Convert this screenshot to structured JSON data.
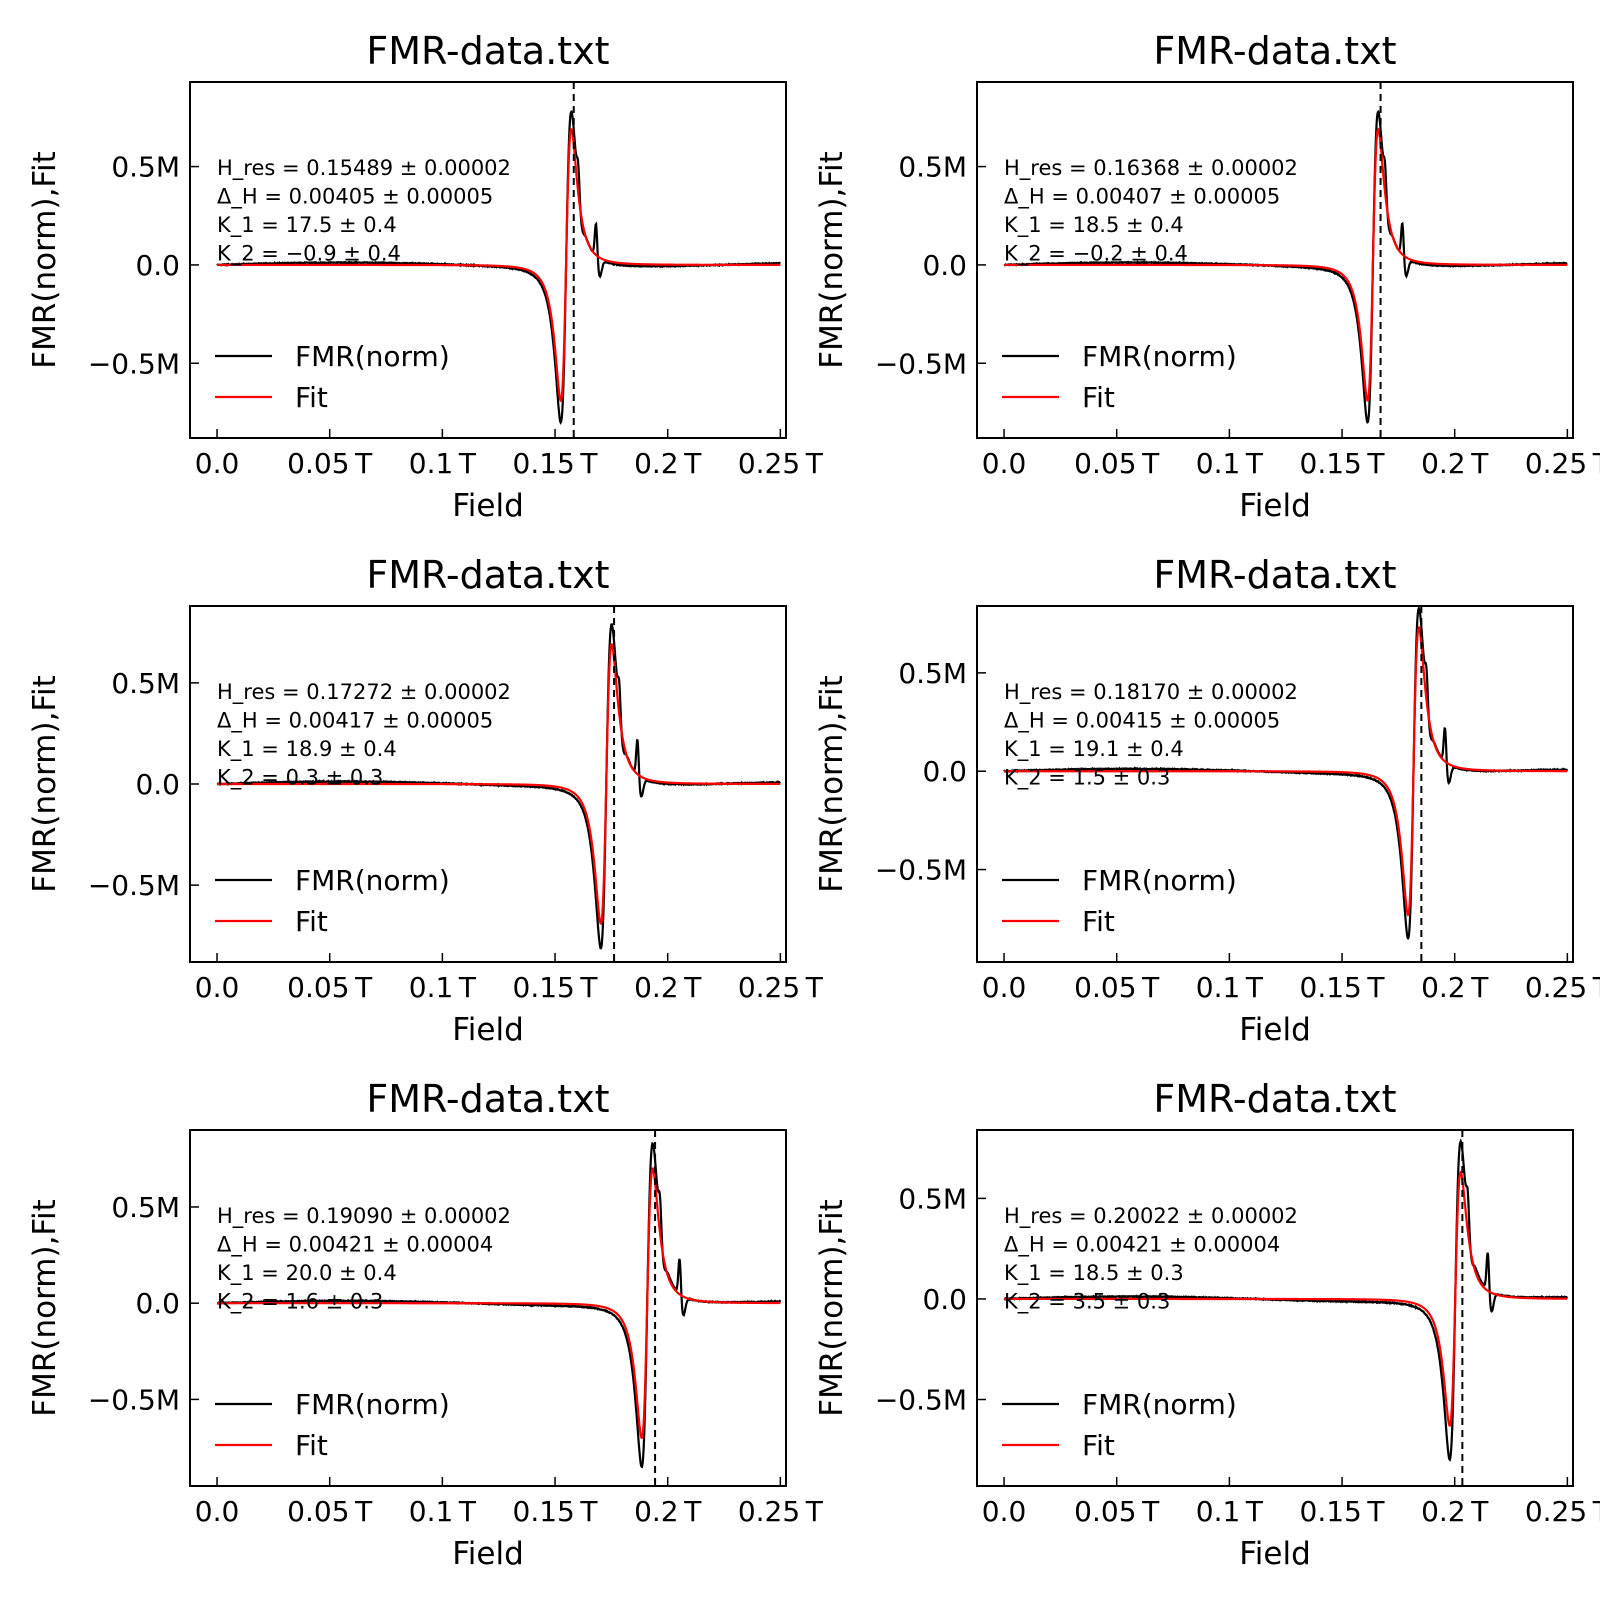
{
  "chart_data": [
    {
      "type": "line",
      "title": "FMR-data.txt",
      "xlabel": "Field",
      "ylabel": "FMR(norm),Fit",
      "xlim": [
        -0.012,
        0.2525
      ],
      "ylim": [
        -0.88,
        0.93
      ],
      "xticks": [
        0.0,
        0.05,
        0.1,
        0.15,
        0.2,
        0.25
      ],
      "xtick_labels": [
        "0.0",
        "0.05 T",
        "0.1 T",
        "0.15 T",
        "0.2 T",
        "0.25 T"
      ],
      "yticks": [
        -0.5,
        0.0,
        0.5
      ],
      "ytick_labels": [
        "−0.5M",
        "0.0",
        "0.5M"
      ],
      "legend": "lower-left",
      "series": [
        {
          "name": "FMR(norm)",
          "color": "#000000",
          "params": {
            "h0": 0.15489,
            "dh": 0.00405,
            "amp": 0.79,
            "extra_peaks": [
              [
                0.1603,
                0.12
              ],
              [
                0.1682,
                0.18
              ]
            ]
          }
        },
        {
          "name": "Fit",
          "color": "#ff0000",
          "params": {
            "h0": 0.15489,
            "dh": 0.00405,
            "amp": 0.69
          }
        }
      ],
      "vline_x": 0.1583,
      "annotations": [
        "H_res = 0.15489 ± 0.00002",
        "Δ_H = 0.00405 ± 0.00005",
        "K_1 = 17.5 ± 0.4",
        "K_2 = −0.9 ± 0.4"
      ]
    },
    {
      "type": "line",
      "title": "FMR-data.txt",
      "xlabel": "Field",
      "ylabel": "FMR(norm),Fit",
      "xlim": [
        -0.012,
        0.2525
      ],
      "ylim": [
        -0.88,
        0.93
      ],
      "xticks": [
        0.0,
        0.05,
        0.1,
        0.15,
        0.2,
        0.25
      ],
      "xtick_labels": [
        "0.0",
        "0.05 T",
        "0.1 T",
        "0.15 T",
        "0.2 T",
        "0.25 T"
      ],
      "yticks": [
        -0.5,
        0.0,
        0.5
      ],
      "ytick_labels": [
        "−0.5M",
        "0.0",
        "0.5M"
      ],
      "legend": "lower-left",
      "series": [
        {
          "name": "FMR(norm)",
          "color": "#000000",
          "params": {
            "h0": 0.16368,
            "dh": 0.00407,
            "amp": 0.79,
            "extra_peaks": [
              [
                0.1691,
                0.12
              ],
              [
                0.1768,
                0.18
              ]
            ]
          }
        },
        {
          "name": "Fit",
          "color": "#ff0000",
          "params": {
            "h0": 0.16368,
            "dh": 0.00407,
            "amp": 0.69
          }
        }
      ],
      "vline_x": 0.1671,
      "annotations": [
        "H_res = 0.16368 ± 0.00002",
        "Δ_H = 0.00407 ± 0.00005",
        "K_1 = 18.5 ± 0.4",
        "K_2 = −0.2 ± 0.4"
      ]
    },
    {
      "type": "line",
      "title": "FMR-data.txt",
      "xlabel": "Field",
      "ylabel": "FMR(norm),Fit",
      "xlim": [
        -0.012,
        0.2525
      ],
      "ylim": [
        -0.88,
        0.88
      ],
      "xticks": [
        0.0,
        0.05,
        0.1,
        0.15,
        0.2,
        0.25
      ],
      "xtick_labels": [
        "0.0",
        "0.05 T",
        "0.1 T",
        "0.15 T",
        "0.2 T",
        "0.25 T"
      ],
      "yticks": [
        -0.5,
        0.0,
        0.5
      ],
      "ytick_labels": [
        "−0.5M",
        "0.0",
        "0.5M"
      ],
      "legend": "lower-left",
      "series": [
        {
          "name": "FMR(norm)",
          "color": "#000000",
          "params": {
            "h0": 0.17272,
            "dh": 0.00417,
            "amp": 0.8,
            "extra_peaks": [
              [
                0.1785,
                0.13
              ],
              [
                0.1866,
                0.19
              ]
            ]
          }
        },
        {
          "name": "Fit",
          "color": "#ff0000",
          "params": {
            "h0": 0.17272,
            "dh": 0.00417,
            "amp": 0.69
          }
        }
      ],
      "vline_x": 0.1762,
      "annotations": [
        "H_res = 0.17272 ± 0.00002",
        "Δ_H = 0.00417 ± 0.00005",
        "K_1 = 18.9 ± 0.4",
        "K_2 = 0.3 ± 0.3"
      ]
    },
    {
      "type": "line",
      "title": "FMR-data.txt",
      "xlabel": "Field",
      "ylabel": "FMR(norm),Fit",
      "xlim": [
        -0.012,
        0.2525
      ],
      "ylim": [
        -0.97,
        0.84
      ],
      "xticks": [
        0.0,
        0.05,
        0.1,
        0.15,
        0.2,
        0.25
      ],
      "xtick_labels": [
        "0.0",
        "0.05 T",
        "0.1 T",
        "0.15 T",
        "0.2 T",
        "0.25 T"
      ],
      "yticks": [
        -0.5,
        0.0,
        0.5
      ],
      "ytick_labels": [
        "−0.5M",
        "0.0",
        "0.5M"
      ],
      "legend": "lower-left",
      "series": [
        {
          "name": "FMR(norm)",
          "color": "#000000",
          "params": {
            "h0": 0.1817,
            "dh": 0.00415,
            "amp": 0.84,
            "extra_peaks": [
              [
                0.1875,
                0.13
              ],
              [
                0.1957,
                0.19
              ]
            ]
          }
        },
        {
          "name": "Fit",
          "color": "#ff0000",
          "params": {
            "h0": 0.1817,
            "dh": 0.00415,
            "amp": 0.73
          }
        }
      ],
      "vline_x": 0.1852,
      "annotations": [
        "H_res = 0.18170 ± 0.00002",
        "Δ_H = 0.00415 ± 0.00005",
        "K_1 = 19.1 ± 0.4",
        "K_2 = 1.5 ± 0.3"
      ]
    },
    {
      "type": "line",
      "title": "FMR-data.txt",
      "xlabel": "Field",
      "ylabel": "FMR(norm),Fit",
      "xlim": [
        -0.012,
        0.2525
      ],
      "ylim": [
        -0.95,
        0.9
      ],
      "xticks": [
        0.0,
        0.05,
        0.1,
        0.15,
        0.2,
        0.25
      ],
      "xtick_labels": [
        "0.0",
        "0.05 T",
        "0.1 T",
        "0.15 T",
        "0.2 T",
        "0.25 T"
      ],
      "yticks": [
        -0.5,
        0.0,
        0.5
      ],
      "ytick_labels": [
        "−0.5M",
        "0.0",
        "0.5M"
      ],
      "legend": "lower-left",
      "series": [
        {
          "name": "FMR(norm)",
          "color": "#000000",
          "params": {
            "h0": 0.1909,
            "dh": 0.00421,
            "amp": 0.84,
            "extra_peaks": [
              [
                0.1966,
                0.14
              ],
              [
                0.2053,
                0.2
              ]
            ]
          }
        },
        {
          "name": "Fit",
          "color": "#ff0000",
          "params": {
            "h0": 0.1909,
            "dh": 0.00421,
            "amp": 0.7
          }
        }
      ],
      "vline_x": 0.1944,
      "annotations": [
        "H_res = 0.19090 ± 0.00002",
        "Δ_H = 0.00421 ± 0.00004",
        "K_1 = 20.0 ± 0.4",
        "K_2 = 1.6 ± 0.3"
      ]
    },
    {
      "type": "line",
      "title": "FMR-data.txt",
      "xlabel": "Field",
      "ylabel": "FMR(norm),Fit",
      "xlim": [
        -0.012,
        0.2525
      ],
      "ylim": [
        -0.93,
        0.84
      ],
      "xticks": [
        0.0,
        0.05,
        0.1,
        0.15,
        0.2,
        0.25
      ],
      "xtick_labels": [
        "0.0",
        "0.05 T",
        "0.1 T",
        "0.15 T",
        "0.2 T",
        "0.25 T"
      ],
      "yticks": [
        -0.5,
        0.0,
        0.5
      ],
      "ytick_labels": [
        "−0.5M",
        "0.0",
        "0.5M"
      ],
      "legend": "lower-left",
      "series": [
        {
          "name": "FMR(norm)",
          "color": "#000000",
          "params": {
            "h0": 0.20022,
            "dh": 0.00421,
            "amp": 0.79,
            "extra_peaks": [
              [
                0.2058,
                0.13
              ],
              [
                0.2147,
                0.2
              ]
            ]
          }
        },
        {
          "name": "Fit",
          "color": "#ff0000",
          "params": {
            "h0": 0.20022,
            "dh": 0.00421,
            "amp": 0.63
          }
        }
      ],
      "vline_x": 0.2034,
      "annotations": [
        "H_res = 0.20022 ± 0.00002",
        "Δ_H = 0.00421 ± 0.00004",
        "K_1 = 18.5 ± 0.3",
        "K_2 = 3.5 ± 0.3"
      ]
    }
  ]
}
